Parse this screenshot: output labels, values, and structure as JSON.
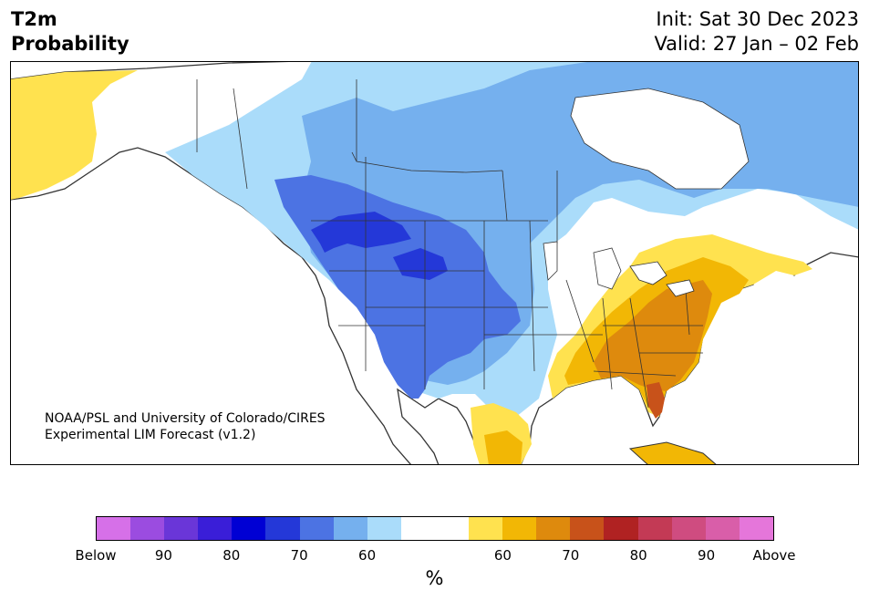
{
  "header": {
    "title_line1": "T2m",
    "title_line2": "Probability",
    "init": "Init: Sat 30 Dec 2023",
    "valid": "Valid: 27 Jan – 02 Feb"
  },
  "map": {
    "credit_line1": "NOAA/PSL and University of Colorado/CIRES",
    "credit_line2": "Experimental LIM Forecast (v1.2)",
    "colors": {
      "ocean": "#ffffff",
      "land_neutral": "#ffffff",
      "border": "#333333",
      "below_60": "#aadcfa",
      "below_65": "#75b0ee",
      "below_70": "#4c73e3",
      "below_75": "#2438d8",
      "above_60": "#ffe24f",
      "above_65": "#f2b705",
      "above_70": "#de8a0d",
      "above_75": "#c8521a"
    }
  },
  "colorbar": {
    "colors": [
      "#d670e8",
      "#9b4ce0",
      "#6a36d8",
      "#3a1ed8",
      "#0000d4",
      "#2438d8",
      "#4c73e3",
      "#75b0ee",
      "#aadcfa",
      "#ffffff",
      "#ffffff",
      "#ffe24f",
      "#f2b705",
      "#de8a0d",
      "#c8521a",
      "#b02222",
      "#c33a55",
      "#cf4c80",
      "#d95ea9",
      "#e576da"
    ],
    "ticks": [
      "Below",
      "90",
      "80",
      "70",
      "60",
      "60",
      "70",
      "80",
      "90",
      "Above"
    ],
    "unit": "%"
  }
}
